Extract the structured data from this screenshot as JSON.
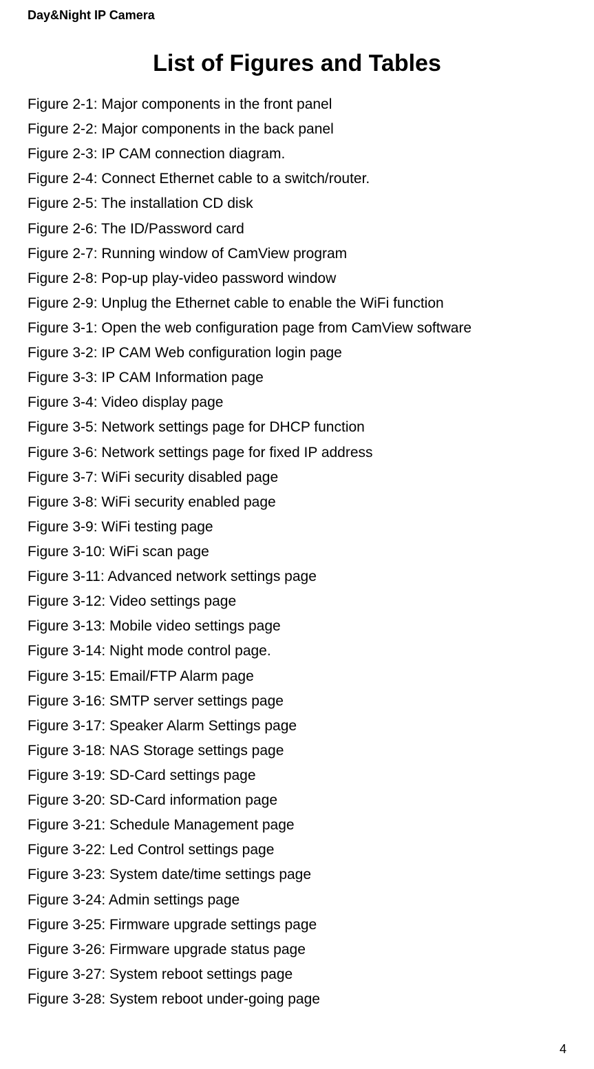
{
  "header": {
    "title": "Day&Night IP Camera"
  },
  "page_title": "List of Figures and Tables",
  "figures": [
    "Figure 2-1: Major components in the front panel",
    "Figure 2-2: Major components in the back panel",
    "Figure 2-3: IP CAM connection diagram.",
    "Figure 2-4: Connect Ethernet cable to a switch/router.",
    "Figure 2-5: The installation CD disk",
    "Figure 2-6: The ID/Password card",
    "Figure 2-7: Running window of CamView program",
    "Figure 2-8: Pop-up play-video password window",
    "Figure 2-9: Unplug the Ethernet cable to enable the WiFi function",
    "Figure 3-1: Open the web configuration page from CamView software",
    "Figure 3-2: IP CAM Web configuration login page",
    "Figure 3-3: IP CAM Information page",
    "Figure 3-4: Video display page",
    "Figure 3-5: Network settings page for DHCP function",
    "Figure 3-6: Network settings page for fixed IP address",
    "Figure 3-7: WiFi security disabled page",
    "Figure 3-8: WiFi security enabled page",
    "Figure 3-9: WiFi testing page",
    "Figure 3-10: WiFi scan page",
    "Figure 3-11: Advanced network settings page",
    "Figure 3-12: Video settings page",
    "Figure 3-13: Mobile video settings page",
    "Figure 3-14: Night mode control page.",
    "Figure 3-15: Email/FTP Alarm page",
    "Figure 3-16: SMTP server settings page",
    "Figure 3-17: Speaker Alarm Settings page",
    "Figure 3-18: NAS Storage settings page",
    "Figure 3-19: SD-Card settings page",
    "Figure 3-20: SD-Card information page",
    "Figure 3-21: Schedule Management page",
    "Figure 3-22: Led Control settings page",
    "Figure 3-23: System date/time settings page",
    "Figure 3-24: Admin settings page",
    "Figure 3-25: Firmware upgrade settings page",
    "Figure 3-26: Firmware upgrade status page",
    "Figure 3-27: System reboot settings page",
    "Figure 3-28: System reboot under-going page"
  ],
  "page_number": "4",
  "colors": {
    "background": "#ffffff",
    "text": "#000000"
  },
  "typography": {
    "header_fontsize": 18,
    "header_weight": "bold",
    "title_fontsize": 34,
    "title_weight": "bold",
    "body_fontsize": 21,
    "body_lineheight": 1.72,
    "pagenum_fontsize": 18
  }
}
